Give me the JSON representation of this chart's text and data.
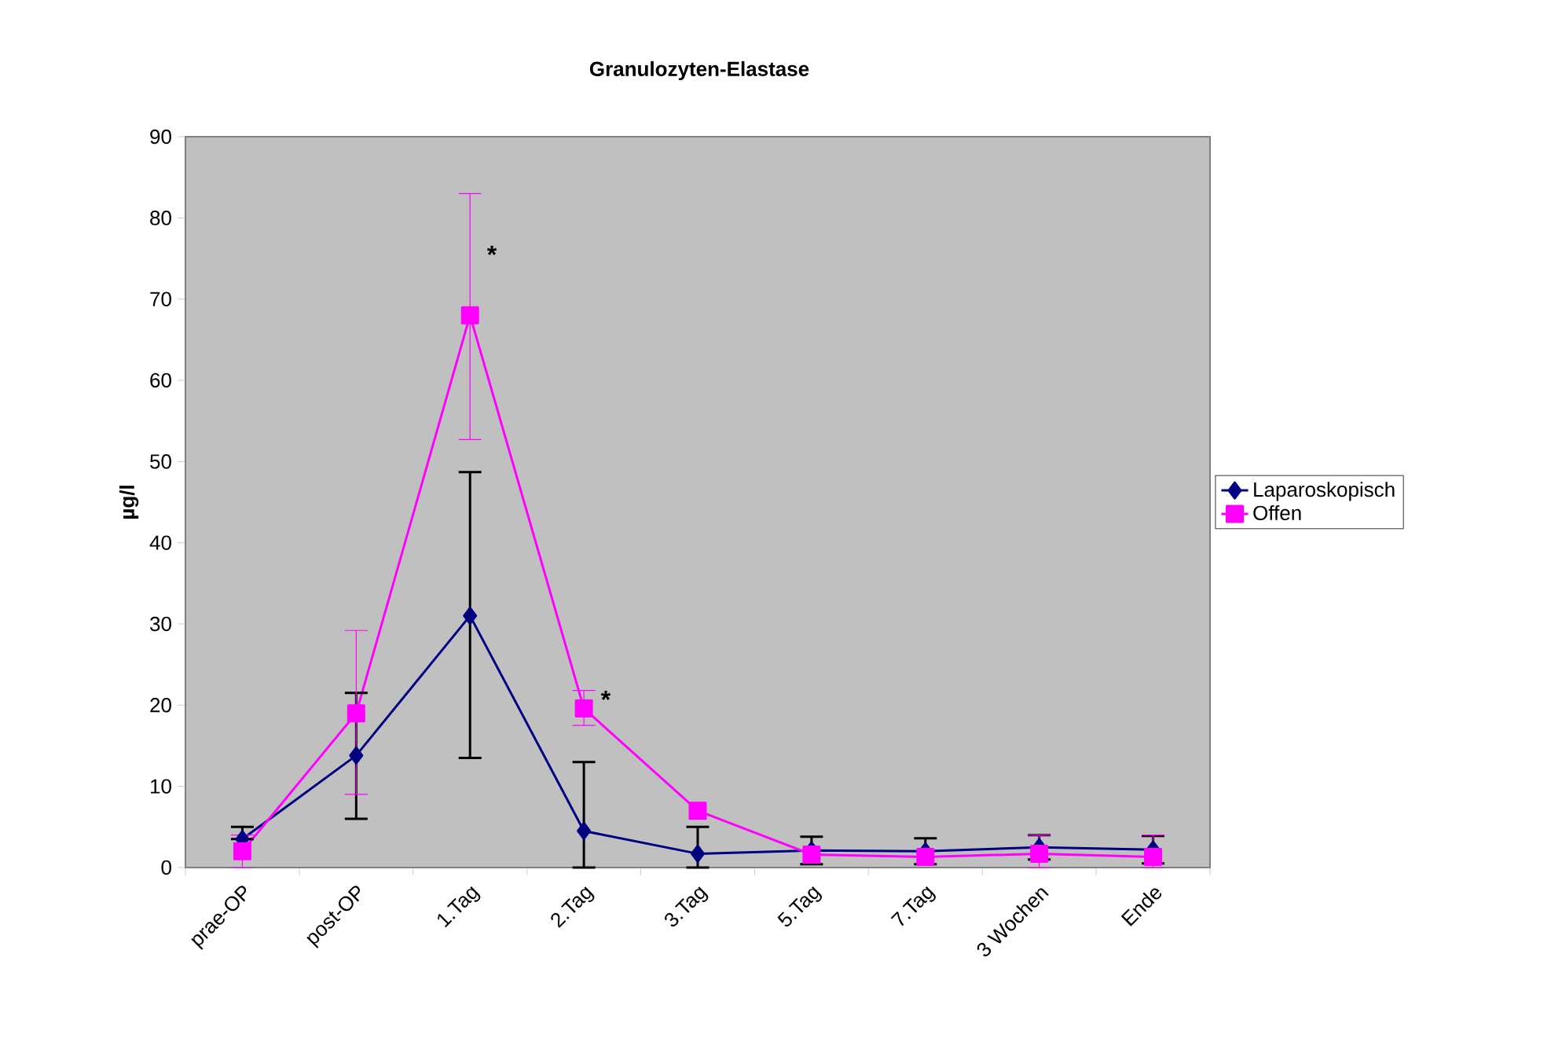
{
  "chart_data": {
    "type": "line",
    "title": "Granulozyten-Elastase",
    "ylabel": "µg/l",
    "categories": [
      "prae-OP",
      "post-OP",
      "1.Tag",
      "2.Tag",
      "3.Tag",
      "5.Tag",
      "7.Tag",
      "3 Wochen",
      "Ende"
    ],
    "series": [
      {
        "name": "Laparoskopisch",
        "color": "#000080",
        "marker": "diamond",
        "values": [
          3.5,
          13.8,
          31,
          4.5,
          1.7,
          2.1,
          2.0,
          2.5,
          2.2
        ],
        "errors": [
          [
            3.5,
            5
          ],
          [
            6,
            21.5
          ],
          [
            13.5,
            48.7
          ],
          [
            0,
            13
          ],
          [
            0,
            5
          ],
          [
            0.4,
            3.8
          ],
          [
            0.4,
            3.6
          ],
          [
            1,
            4
          ],
          [
            0.5,
            3.9
          ]
        ]
      },
      {
        "name": "Offen",
        "color": "#ff00ff",
        "marker": "square",
        "values": [
          2.0,
          19,
          68,
          19.6,
          7,
          1.6,
          1.3,
          1.7,
          1.3
        ],
        "errors": [
          [
            0,
            4
          ],
          [
            9,
            29.2
          ],
          [
            52.7,
            83
          ],
          [
            17.5,
            21.8
          ],
          null,
          null,
          null,
          [
            0,
            4
          ],
          [
            0,
            4
          ]
        ]
      }
    ],
    "ylim": [
      0,
      90
    ],
    "yticks": [
      0,
      10,
      20,
      30,
      40,
      50,
      60,
      70,
      80,
      90
    ],
    "annotations": [
      "*",
      "*"
    ],
    "legend": "right",
    "line_style": "solid"
  }
}
